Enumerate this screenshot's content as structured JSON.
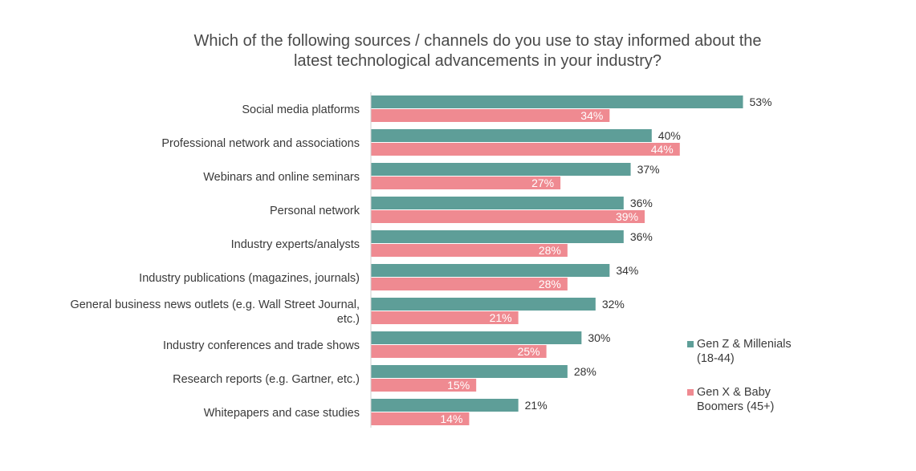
{
  "colors": {
    "series_a": "#5e9e98",
    "series_b": "#ef8a91",
    "axis": "#cfcfcf"
  },
  "chart_data": {
    "type": "bar",
    "orientation": "horizontal",
    "title": "Which of the following sources / channels do you use to stay informed about the latest technological advancements in your industry?",
    "title_lines": [
      "Which of the following sources / channels do you use to stay informed about the",
      "latest technological advancements in your industry?"
    ],
    "xlabel": "",
    "ylabel": "",
    "xlim": [
      0,
      100
    ],
    "grid": false,
    "legend_position": "right",
    "categories": [
      "Social media platforms",
      "Professional network and associations",
      "Webinars and online seminars",
      "Personal network",
      "Industry experts/analysts",
      "Industry publications (magazines, journals)",
      "General business news outlets (e.g. Wall Street Journal, etc.)",
      "Industry conferences and trade shows",
      "Research reports (e.g. Gartner, etc.)",
      "Whitepapers and case studies"
    ],
    "category_lines": [
      [
        "Social media platforms"
      ],
      [
        "Professional network and associations"
      ],
      [
        "Webinars and online seminars"
      ],
      [
        "Personal network"
      ],
      [
        "Industry experts/analysts"
      ],
      [
        "Industry publications (magazines, journals)"
      ],
      [
        "General business news outlets (e.g. Wall Street Journal,",
        "etc.)"
      ],
      [
        "Industry conferences and trade shows"
      ],
      [
        "Research reports (e.g. Gartner, etc.)"
      ],
      [
        "Whitepapers and case studies"
      ]
    ],
    "series": [
      {
        "name": "Gen Z & Millenials (18-44)",
        "legend_lines": [
          "Gen Z & Millenials",
          "(18-44)"
        ],
        "values": [
          53,
          40,
          37,
          36,
          36,
          34,
          32,
          30,
          28,
          21
        ],
        "labels": [
          "53%",
          "40%",
          "37%",
          "36%",
          "36%",
          "34%",
          "32%",
          "30%",
          "28%",
          "21%"
        ]
      },
      {
        "name": "Gen X & Baby Boomers (45+)",
        "legend_lines": [
          "Gen X & Baby",
          "Boomers (45+)"
        ],
        "values": [
          34,
          44,
          27,
          39,
          28,
          28,
          21,
          25,
          15,
          14
        ],
        "labels": [
          "34%",
          "44%",
          "27%",
          "39%",
          "28%",
          "28%",
          "21%",
          "25%",
          "15%",
          "14%"
        ]
      }
    ]
  }
}
